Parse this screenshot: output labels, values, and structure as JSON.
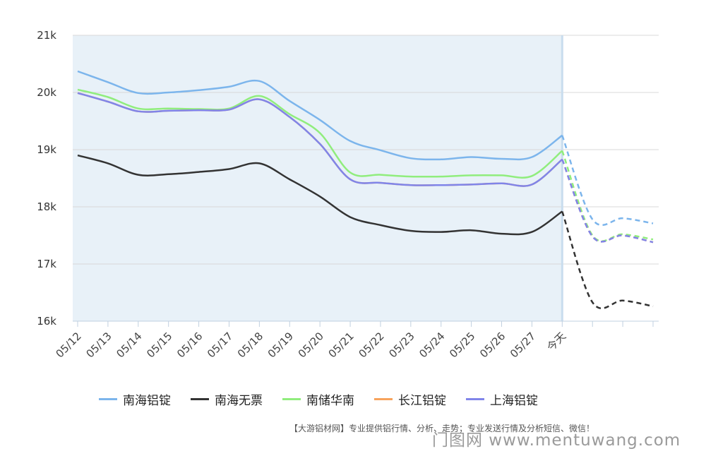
{
  "chart_data": {
    "type": "line",
    "categories": [
      "05/12",
      "05/13",
      "05/14",
      "05/15",
      "05/16",
      "05/17",
      "05/18",
      "05/19",
      "05/20",
      "05/21",
      "05/22",
      "05/23",
      "05/24",
      "05/25",
      "05/26",
      "05/27",
      "今天",
      "",
      "",
      ""
    ],
    "historical_end_index": 16,
    "forecast_style": "dashed",
    "yticks": [
      "16k",
      "17k",
      "18k",
      "19k",
      "20k",
      "21k"
    ],
    "ylim": [
      16000,
      21000
    ],
    "grid": true,
    "legend_position": "bottom",
    "series": [
      {
        "name": "南海铝锭",
        "color": "#7cb5ec",
        "values": [
          20370,
          20180,
          19990,
          20000,
          20040,
          20100,
          20200,
          19850,
          19520,
          19150,
          18990,
          18850,
          18830,
          18870,
          18840,
          18870,
          19250,
          17780,
          17800,
          17710
        ]
      },
      {
        "name": "南海无票",
        "color": "#333333",
        "values": [
          18900,
          18760,
          18560,
          18570,
          18610,
          18660,
          18760,
          18480,
          18180,
          17820,
          17680,
          17580,
          17560,
          17590,
          17530,
          17560,
          17920,
          16330,
          16360,
          16260
        ]
      },
      {
        "name": "南储华南",
        "color": "#90ed7d",
        "values": [
          20050,
          19920,
          19720,
          19720,
          19710,
          19720,
          19940,
          19620,
          19290,
          18600,
          18560,
          18530,
          18530,
          18550,
          18550,
          18540,
          18980,
          17500,
          17520,
          17430
        ]
      },
      {
        "name": "长江铝锭",
        "color": "#f7a35c",
        "values": [
          19990,
          19840,
          19670,
          19680,
          19690,
          19700,
          19880,
          19570,
          19100,
          18480,
          18420,
          18380,
          18380,
          18390,
          18410,
          18390,
          18830,
          17480,
          17500,
          17380
        ]
      },
      {
        "name": "上海铝锭",
        "color": "#8085e9",
        "values": [
          19990,
          19840,
          19670,
          19680,
          19690,
          19700,
          19880,
          19570,
          19100,
          18480,
          18420,
          18380,
          18380,
          18390,
          18410,
          18390,
          18830,
          17480,
          17500,
          17380
        ]
      }
    ]
  },
  "footer_note": "【大游铝材网】专业提供铝行情、分析、走势；专业发送行情及分析短信、微信！",
  "watermark": "门图网 www.mentuwang.com",
  "colors": {
    "plot_band": "#e8f1f8",
    "today_line": "#c9ddee",
    "grid": "#d8d8d8"
  }
}
